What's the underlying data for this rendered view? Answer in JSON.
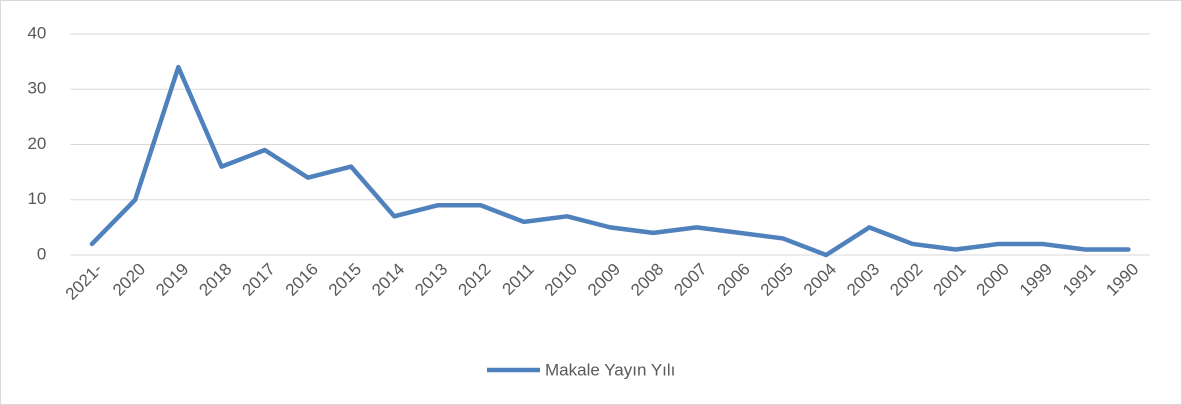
{
  "chart_data": {
    "type": "line",
    "categories": [
      "2021-",
      "2020",
      "2019",
      "2018",
      "2017",
      "2016",
      "2015",
      "2014",
      "2013",
      "2012",
      "2011",
      "2010",
      "2009",
      "2008",
      "2007",
      "2006",
      "2005",
      "2004",
      "2003",
      "2002",
      "2001",
      "2000",
      "1999",
      "1991",
      "1990"
    ],
    "series": [
      {
        "name": "Makale Yayın Yılı",
        "color": "#4f81bd",
        "values": [
          2,
          10,
          34,
          16,
          19,
          14,
          16,
          7,
          9,
          9,
          6,
          7,
          5,
          4,
          5,
          4,
          3,
          0,
          5,
          2,
          1,
          2,
          2,
          1,
          1
        ]
      }
    ],
    "ylim": [
      0,
      40
    ],
    "yticks": [
      0,
      10,
      20,
      30,
      40
    ],
    "grid": true,
    "legend": "bottom"
  }
}
